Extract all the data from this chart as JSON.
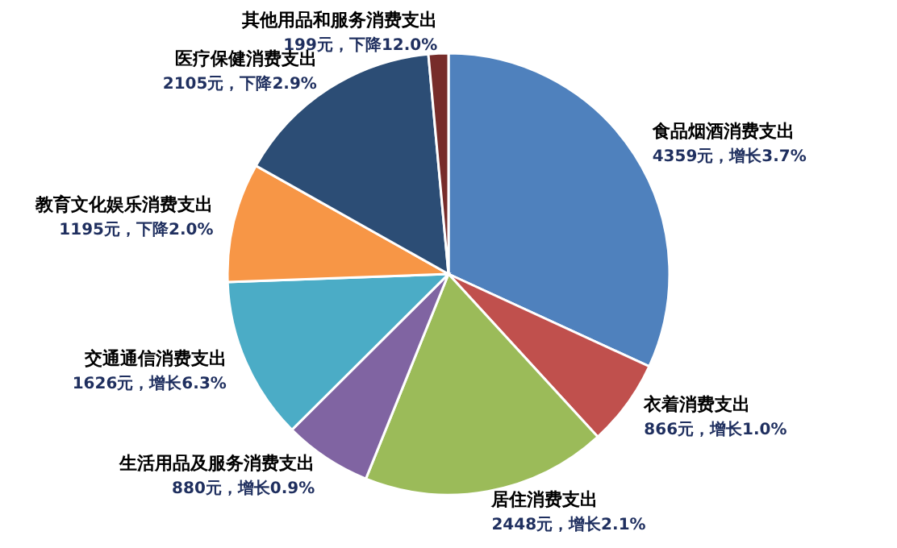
{
  "chart_data": {
    "type": "pie",
    "categories": [
      "食品烟酒消费支出",
      "衣着消费支出",
      "居住消费支出",
      "生活用品及服务消费支出",
      "交通通信消费支出",
      "教育文化娱乐消费支出",
      "医疗保健消费支出",
      "其他用品和服务消费支出"
    ],
    "values": [
      4359,
      866,
      2448,
      880,
      1626,
      1195,
      2105,
      199
    ],
    "value_labels": [
      "4359元，增长3.7%",
      "866元，增长1.0%",
      "2448元，增长2.1%",
      "880元，增长0.9%",
      "1626元，增长6.3%",
      "1195元，下降2.0%",
      "2105元，下降2.9%",
      "199元，下降12.0%"
    ],
    "colors": [
      "#4f81bd",
      "#c0504d",
      "#9bbb59",
      "#8064a2",
      "#4bacc6",
      "#f79646",
      "#2c4d75",
      "#772c2a"
    ]
  }
}
